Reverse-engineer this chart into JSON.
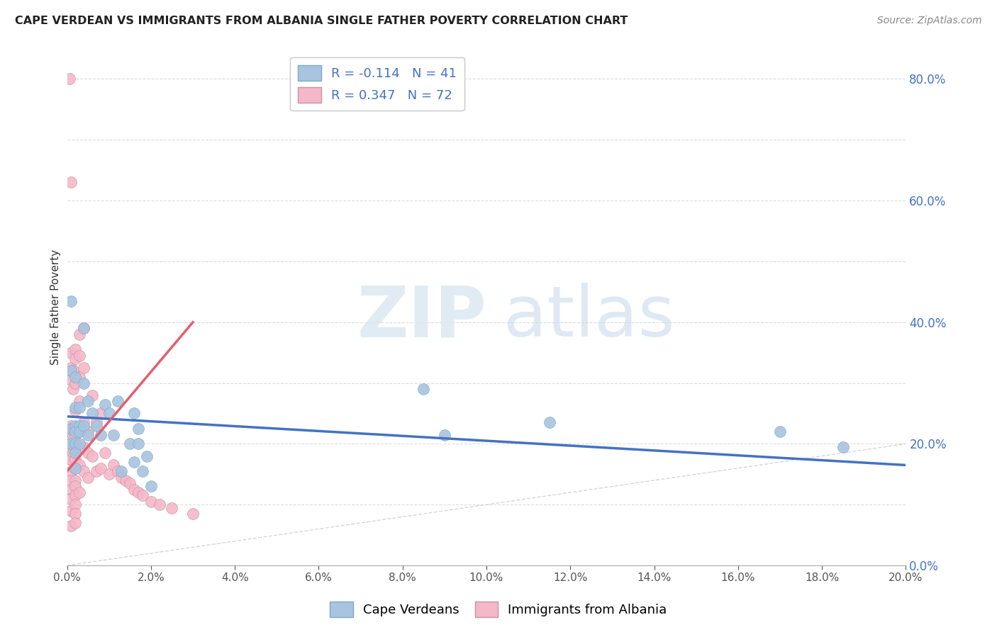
{
  "title": "CAPE VERDEAN VS IMMIGRANTS FROM ALBANIA SINGLE FATHER POVERTY CORRELATION CHART",
  "source": "Source: ZipAtlas.com",
  "ylabel": "Single Father Poverty",
  "legend_top_blue": "R = -0.114   N = 41",
  "legend_top_pink": "R = 0.347   N = 72",
  "legend_bottom": [
    "Cape Verdeans",
    "Immigrants from Albania"
  ],
  "blue_color": "#a8c4e0",
  "pink_color": "#f4b8c8",
  "blue_line_color": "#4472c4",
  "pink_line_color": "#e06070",
  "diag_line_color": "#cccccc",
  "blue_scatter_x": [
    0.001,
    0.001,
    0.001,
    0.001,
    0.002,
    0.002,
    0.002,
    0.002,
    0.002,
    0.002,
    0.002,
    0.003,
    0.003,
    0.003,
    0.003,
    0.004,
    0.004,
    0.004,
    0.005,
    0.005,
    0.006,
    0.007,
    0.008,
    0.009,
    0.01,
    0.011,
    0.012,
    0.013,
    0.015,
    0.016,
    0.016,
    0.017,
    0.017,
    0.018,
    0.019,
    0.02,
    0.085,
    0.09,
    0.115,
    0.17,
    0.185
  ],
  "blue_scatter_y": [
    0.435,
    0.32,
    0.225,
    0.2,
    0.31,
    0.26,
    0.23,
    0.22,
    0.2,
    0.185,
    0.16,
    0.26,
    0.23,
    0.22,
    0.2,
    0.39,
    0.3,
    0.23,
    0.27,
    0.215,
    0.25,
    0.23,
    0.215,
    0.265,
    0.25,
    0.215,
    0.27,
    0.155,
    0.2,
    0.25,
    0.17,
    0.225,
    0.2,
    0.155,
    0.18,
    0.13,
    0.29,
    0.215,
    0.235,
    0.22,
    0.195
  ],
  "pink_scatter_x": [
    0.0005,
    0.0005,
    0.0005,
    0.0005,
    0.001,
    0.001,
    0.001,
    0.001,
    0.001,
    0.001,
    0.001,
    0.001,
    0.001,
    0.001,
    0.001,
    0.001,
    0.001,
    0.001,
    0.0015,
    0.0015,
    0.0015,
    0.0015,
    0.002,
    0.002,
    0.002,
    0.002,
    0.002,
    0.002,
    0.002,
    0.002,
    0.002,
    0.002,
    0.002,
    0.002,
    0.002,
    0.002,
    0.003,
    0.003,
    0.003,
    0.003,
    0.003,
    0.003,
    0.003,
    0.003,
    0.004,
    0.004,
    0.004,
    0.004,
    0.004,
    0.005,
    0.005,
    0.005,
    0.006,
    0.006,
    0.007,
    0.007,
    0.008,
    0.008,
    0.009,
    0.01,
    0.011,
    0.012,
    0.013,
    0.014,
    0.015,
    0.016,
    0.017,
    0.018,
    0.02,
    0.022,
    0.025,
    0.03
  ],
  "pink_scatter_y": [
    0.8,
    0.205,
    0.195,
    0.175,
    0.63,
    0.35,
    0.325,
    0.305,
    0.23,
    0.21,
    0.195,
    0.175,
    0.155,
    0.14,
    0.125,
    0.11,
    0.09,
    0.065,
    0.32,
    0.29,
    0.215,
    0.185,
    0.355,
    0.34,
    0.3,
    0.255,
    0.215,
    0.195,
    0.175,
    0.16,
    0.14,
    0.13,
    0.115,
    0.1,
    0.085,
    0.07,
    0.38,
    0.345,
    0.31,
    0.27,
    0.22,
    0.195,
    0.165,
    0.12,
    0.39,
    0.325,
    0.235,
    0.195,
    0.155,
    0.22,
    0.185,
    0.145,
    0.28,
    0.18,
    0.235,
    0.155,
    0.25,
    0.16,
    0.185,
    0.15,
    0.165,
    0.155,
    0.145,
    0.14,
    0.135,
    0.125,
    0.12,
    0.115,
    0.105,
    0.1,
    0.095,
    0.085
  ],
  "xlim": [
    0,
    0.2
  ],
  "ylim": [
    0,
    0.85
  ],
  "xtick_interval": 0.02,
  "ytick_vals": [
    0.0,
    0.2,
    0.4,
    0.6,
    0.8
  ],
  "blue_line_x": [
    0.0,
    0.2
  ],
  "blue_line_y": [
    0.245,
    0.165
  ],
  "pink_line_x": [
    0.0,
    0.03
  ],
  "pink_line_y": [
    0.155,
    0.4
  ]
}
